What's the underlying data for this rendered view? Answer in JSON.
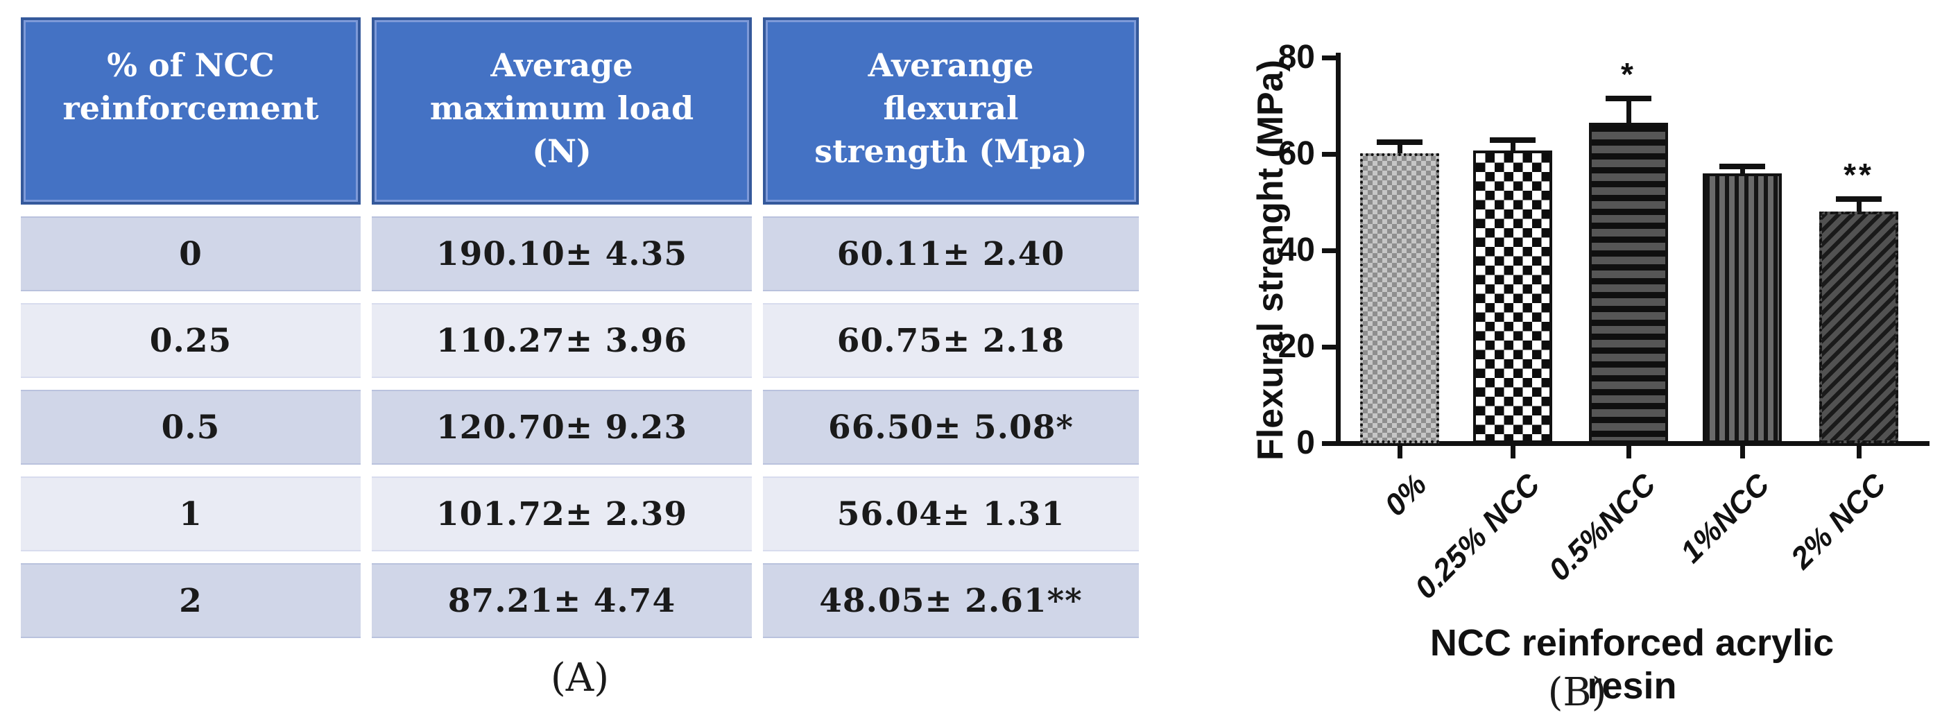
{
  "figure": {
    "panel_a_label": "(A)",
    "panel_b_label": "(B)"
  },
  "table": {
    "headers": [
      "% of NCC\nreinforcement",
      "Average\nmaximum load\n(N)",
      "Averange\nflexural\nstrength (Mpa)"
    ],
    "rows": [
      {
        "cells": [
          "0",
          "190.10± 4.35",
          "60.11± 2.40"
        ]
      },
      {
        "cells": [
          "0.25",
          "110.27± 3.96",
          "60.75± 2.18"
        ]
      },
      {
        "cells": [
          "0.5",
          "120.70± 9.23",
          "66.50± 5.08*"
        ]
      },
      {
        "cells": [
          "1",
          "101.72± 2.39",
          "56.04± 1.31"
        ]
      },
      {
        "cells": [
          "2",
          "87.21± 4.74",
          "48.05± 2.61**"
        ]
      }
    ],
    "colors": {
      "header_bg": "#4472C4",
      "header_border": "#35599B",
      "row_dark": "#D0D6E8",
      "row_light": "#E9EBF4",
      "header_text": "#FFFFFF",
      "body_text": "#1A1A1A"
    }
  },
  "chart_data": {
    "type": "bar",
    "title": "",
    "xlabel": "NCC reinforced acrylic resin",
    "ylabel": "Flexural strenght (MPa)",
    "categories": [
      "0%",
      "0.25% NCC",
      "0.5%NCC",
      "1%NCC",
      "2% NCC"
    ],
    "values": [
      60.11,
      60.75,
      66.5,
      56.04,
      48.05
    ],
    "errors": [
      2.4,
      2.18,
      5.08,
      1.31,
      2.61
    ],
    "annotations": [
      "",
      "",
      "*",
      "",
      "**"
    ],
    "ylim": [
      0,
      80
    ],
    "yticks": [
      0,
      20,
      40,
      60,
      80
    ],
    "grid": false,
    "legend": "none",
    "bar_patterns": [
      "fine-checker-gray",
      "checkerboard",
      "horizontal-stripes",
      "vertical-stripes",
      "diagonal-stripes"
    ],
    "axis_color": "#111111"
  }
}
